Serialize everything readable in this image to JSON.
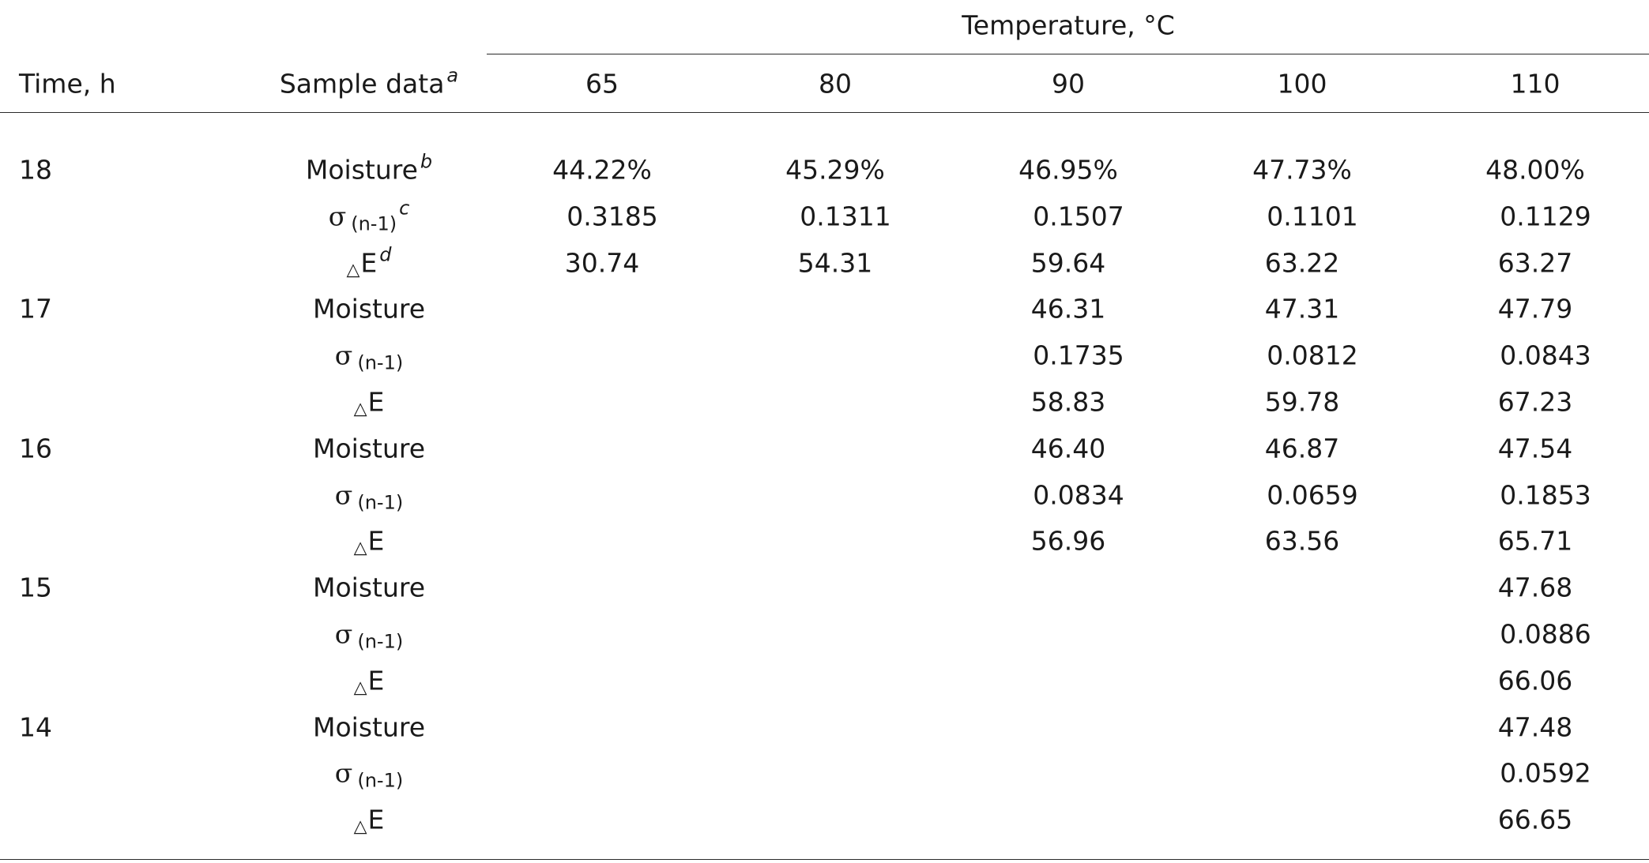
{
  "table": {
    "header": {
      "group_label": "Temperature, °C",
      "time_label": "Time, h",
      "sample_label": "Sample data",
      "sample_sup": "a",
      "temperatures": [
        "65",
        "80",
        "90",
        "100",
        "110"
      ]
    },
    "labels": {
      "moisture": "Moisture",
      "sigma": "σ",
      "sigma_sub": "(n-1)",
      "delta": "△",
      "e": "E"
    },
    "footnote_marks": {
      "moisture": "b",
      "sigma": "c",
      "delta": "d"
    },
    "rows": [
      {
        "time": "18",
        "moisture": [
          "44.22%",
          "45.29%",
          "46.95%",
          "47.73%",
          "48.00%"
        ],
        "sigma": [
          "0.3185",
          "0.1311",
          "0.1507",
          "0.1101",
          "0.1129"
        ],
        "delta_e": [
          "30.74",
          "54.31",
          "59.64",
          "63.22",
          "63.27"
        ]
      },
      {
        "time": "17",
        "moisture": [
          "",
          "",
          "46.31",
          "47.31",
          "47.79"
        ],
        "sigma": [
          "",
          "",
          "0.1735",
          "0.0812",
          "0.0843"
        ],
        "delta_e": [
          "",
          "",
          "58.83",
          "59.78",
          "67.23"
        ]
      },
      {
        "time": "16",
        "moisture": [
          "",
          "",
          "46.40",
          "46.87",
          "47.54"
        ],
        "sigma": [
          "",
          "",
          "0.0834",
          "0.0659",
          "0.1853"
        ],
        "delta_e": [
          "",
          "",
          "56.96",
          "63.56",
          "65.71"
        ]
      },
      {
        "time": "15",
        "moisture": [
          "",
          "",
          "",
          "",
          "47.68"
        ],
        "sigma": [
          "",
          "",
          "",
          "",
          "0.0886"
        ],
        "delta_e": [
          "",
          "",
          "",
          "",
          "66.06"
        ]
      },
      {
        "time": "14",
        "moisture": [
          "",
          "",
          "",
          "",
          "47.48"
        ],
        "sigma": [
          "",
          "",
          "",
          "",
          "0.0592"
        ],
        "delta_e": [
          "",
          "",
          "",
          "",
          "66.65"
        ]
      }
    ]
  }
}
